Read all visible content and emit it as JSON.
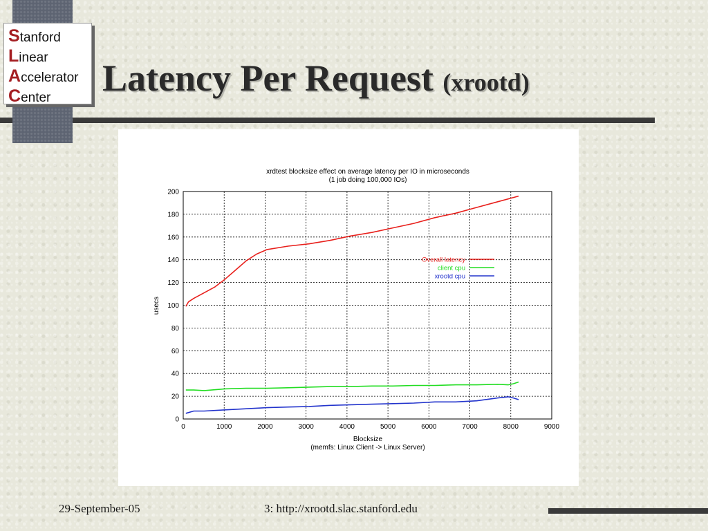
{
  "logo": {
    "lines": [
      {
        "initial": "S",
        "rest": "tanford"
      },
      {
        "initial": "L",
        "rest": "inear"
      },
      {
        "initial": "A",
        "rest": "ccelerator"
      },
      {
        "initial": "C",
        "rest": "enter"
      }
    ]
  },
  "title": {
    "main": "Latency Per Request",
    "sub": "(xrootd)"
  },
  "footer": {
    "date": "29-September-05",
    "page_url": "3: http://xrootd.slac.stanford.edu"
  },
  "chart_data": {
    "type": "line",
    "title": "xrdtest blocksize effect on average latency per IO in microseconds",
    "subtitle": "(1 job doing 100,000 IOs)",
    "xlabel": "Blocksize",
    "xlabel_sub": "(memfs: Linux Client -> Linux Server)",
    "ylabel": "usecs",
    "xlim": [
      0,
      9000
    ],
    "ylim": [
      0,
      200
    ],
    "x_ticks": [
      "0",
      "1000",
      "2000",
      "3000",
      "4000",
      "5000",
      "6000",
      "7000",
      "8000",
      "9000"
    ],
    "y_ticks": [
      "0",
      "20",
      "40",
      "60",
      "80",
      "100",
      "120",
      "140",
      "160",
      "180",
      "200"
    ],
    "grid": true,
    "legend_position": "right-middle",
    "series": [
      {
        "name": "Overall latency",
        "color": "#e8201c",
        "points": [
          [
            64,
            99
          ],
          [
            128,
            103
          ],
          [
            256,
            106
          ],
          [
            512,
            111
          ],
          [
            768,
            116
          ],
          [
            1024,
            123
          ],
          [
            1280,
            131
          ],
          [
            1536,
            139
          ],
          [
            1792,
            145
          ],
          [
            2048,
            149
          ],
          [
            2560,
            152
          ],
          [
            3072,
            154
          ],
          [
            3584,
            157
          ],
          [
            4096,
            161
          ],
          [
            4608,
            164
          ],
          [
            5120,
            168
          ],
          [
            5632,
            172
          ],
          [
            6144,
            177
          ],
          [
            6656,
            181
          ],
          [
            7168,
            186
          ],
          [
            7680,
            191
          ],
          [
            8192,
            196
          ]
        ]
      },
      {
        "name": "client cpu",
        "color": "#22dd22",
        "points": [
          [
            64,
            25.5
          ],
          [
            256,
            25.5
          ],
          [
            512,
            25
          ],
          [
            1024,
            26.5
          ],
          [
            1536,
            27
          ],
          [
            2048,
            27
          ],
          [
            2560,
            27.5
          ],
          [
            3072,
            28
          ],
          [
            3584,
            28.5
          ],
          [
            4096,
            28.5
          ],
          [
            4608,
            29
          ],
          [
            5120,
            29
          ],
          [
            5632,
            29.5
          ],
          [
            6144,
            29.5
          ],
          [
            6656,
            30
          ],
          [
            7168,
            30
          ],
          [
            7680,
            30.5
          ],
          [
            7936,
            30
          ],
          [
            8064,
            31
          ],
          [
            8192,
            32.5
          ]
        ]
      },
      {
        "name": "xrootd cpu",
        "color": "#2233cc",
        "points": [
          [
            64,
            5
          ],
          [
            256,
            7
          ],
          [
            512,
            7
          ],
          [
            1024,
            8
          ],
          [
            1536,
            9
          ],
          [
            2048,
            10
          ],
          [
            2560,
            10.5
          ],
          [
            3072,
            11
          ],
          [
            3584,
            12
          ],
          [
            4096,
            12.5
          ],
          [
            4608,
            13
          ],
          [
            5120,
            13.5
          ],
          [
            5632,
            14
          ],
          [
            6144,
            15
          ],
          [
            6656,
            15
          ],
          [
            7168,
            16
          ],
          [
            7680,
            18.5
          ],
          [
            7936,
            19.5
          ],
          [
            8064,
            18.5
          ],
          [
            8192,
            17
          ]
        ]
      }
    ]
  }
}
